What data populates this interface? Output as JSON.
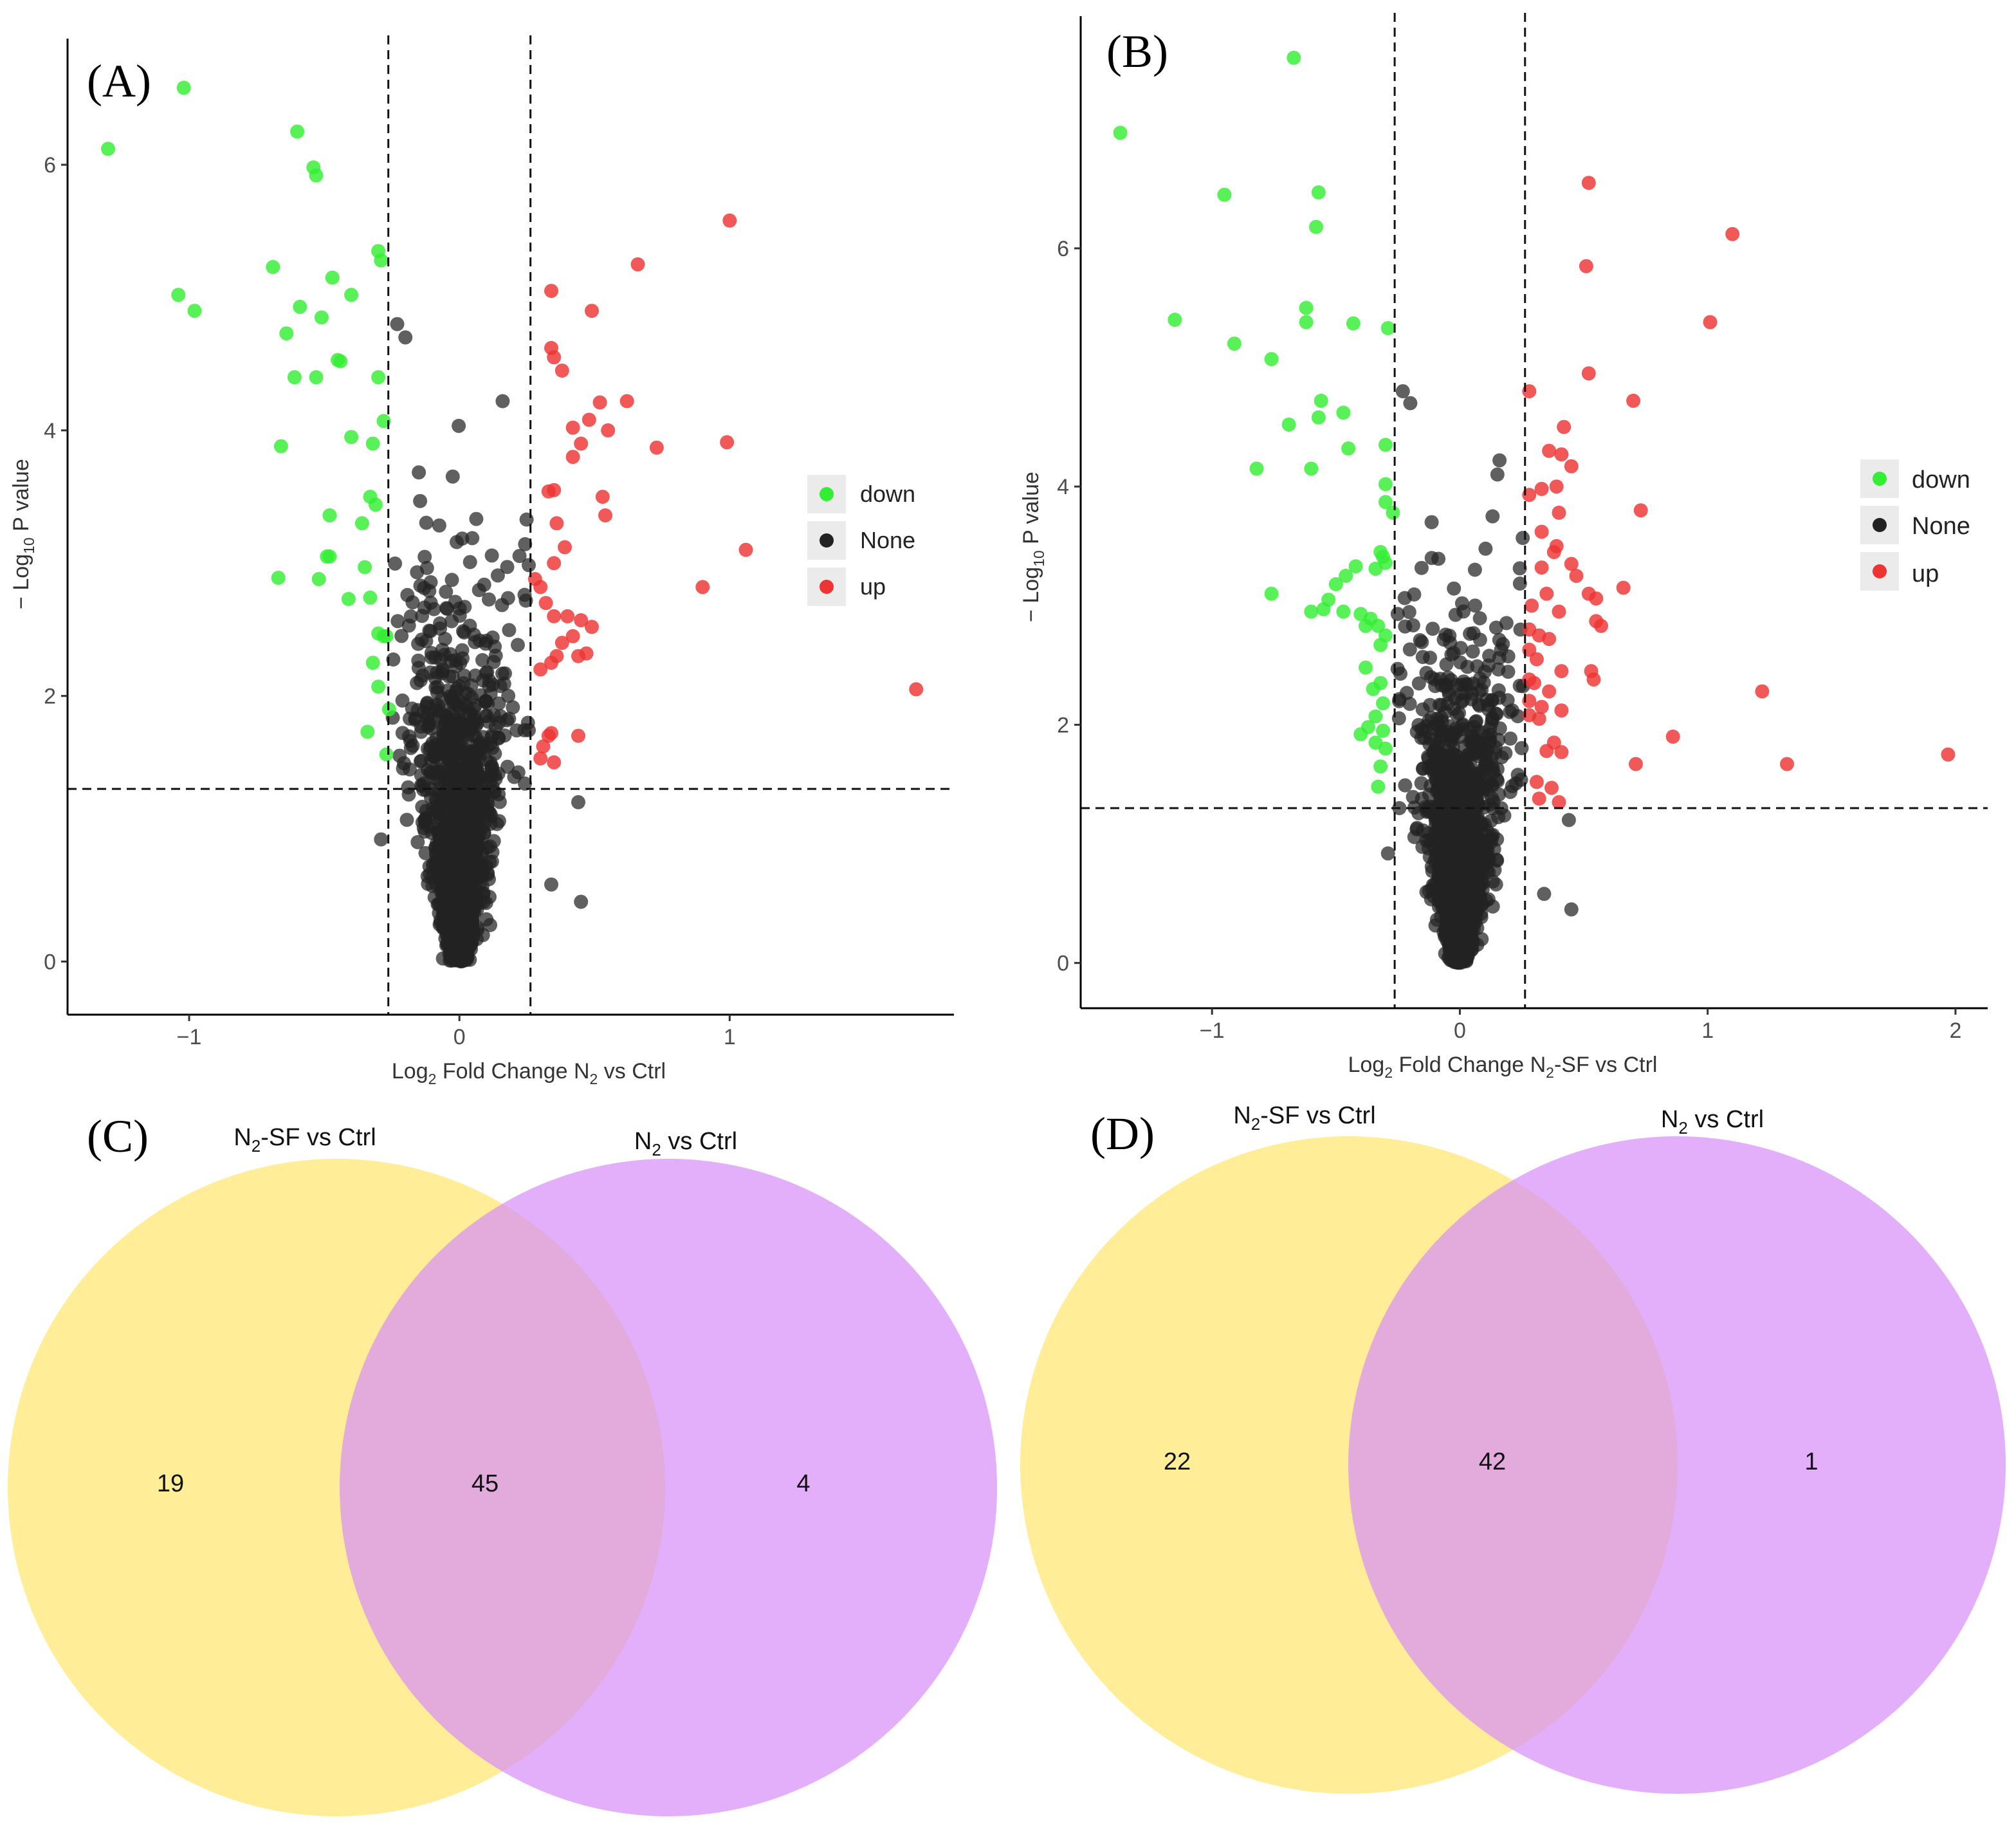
{
  "chart_data": [
    {
      "type": "scatter",
      "panel": "(A)",
      "xlabel": {
        "prefix": "Log",
        "sub": "2",
        "mid": " Fold Change N",
        "sub2": "2",
        "suffix": " vs Ctrl"
      },
      "ylabel": {
        "prefix": "− Log",
        "sub": "10",
        "suffix": " P value"
      },
      "xlim": [
        -1.45,
        1.83
      ],
      "ylim": [
        -0.4,
        6.95
      ],
      "xticks": [
        -1,
        0,
        1
      ],
      "xtick_labels": [
        "−1",
        "0",
        "1"
      ],
      "yticks": [
        0,
        2,
        4,
        6
      ],
      "ytick_labels": [
        "0",
        "2",
        "4",
        "6"
      ],
      "thresholds": {
        "log2fc": [
          -0.263,
          0.263
        ],
        "neg_log10_p": 1.3
      },
      "grid": false,
      "legend": {
        "position": "right",
        "entries": [
          {
            "label": "down",
            "color": "#33ee33"
          },
          {
            "label": "None",
            "color": "#222222"
          },
          {
            "label": "up",
            "color": "#ee3333"
          }
        ]
      },
      "series": [
        {
          "name": "down",
          "color": "#33ee33",
          "points": [
            [
              -1.3,
              6.12
            ],
            [
              -1.02,
              6.58
            ],
            [
              -1.04,
              5.02
            ],
            [
              -0.98,
              4.9
            ],
            [
              -0.6,
              6.25
            ],
            [
              -0.54,
              5.98
            ],
            [
              -0.53,
              5.92
            ],
            [
              -0.69,
              5.23
            ],
            [
              -0.47,
              5.15
            ],
            [
              -0.4,
              5.02
            ],
            [
              -0.59,
              4.93
            ],
            [
              -0.51,
              4.85
            ],
            [
              -0.64,
              4.73
            ],
            [
              -0.45,
              4.53
            ],
            [
              -0.44,
              4.52
            ],
            [
              -0.61,
              4.4
            ],
            [
              -0.53,
              4.4
            ],
            [
              -0.3,
              5.35
            ],
            [
              -0.29,
              5.28
            ],
            [
              -0.3,
              4.4
            ],
            [
              -0.4,
              3.95
            ],
            [
              -0.32,
              3.9
            ],
            [
              -0.28,
              4.07
            ],
            [
              -0.66,
              3.88
            ],
            [
              -0.48,
              3.36
            ],
            [
              -0.36,
              3.3
            ],
            [
              -0.33,
              3.5
            ],
            [
              -0.31,
              3.44
            ],
            [
              -0.49,
              3.05
            ],
            [
              -0.48,
              3.05
            ],
            [
              -0.67,
              2.89
            ],
            [
              -0.52,
              2.88
            ],
            [
              -0.35,
              2.97
            ],
            [
              -0.41,
              2.73
            ],
            [
              -0.33,
              2.74
            ],
            [
              -0.3,
              2.47
            ],
            [
              -0.28,
              2.45
            ],
            [
              -0.27,
              2.45
            ],
            [
              -0.32,
              2.25
            ],
            [
              -0.3,
              2.07
            ],
            [
              -0.34,
              1.73
            ],
            [
              -0.26,
              1.9
            ],
            [
              -0.27,
              1.56
            ]
          ]
        },
        {
          "name": "up",
          "color": "#ee3333",
          "points": [
            [
              1.0,
              5.58
            ],
            [
              0.66,
              5.25
            ],
            [
              0.34,
              5.05
            ],
            [
              0.49,
              4.9
            ],
            [
              0.34,
              4.62
            ],
            [
              0.35,
              4.55
            ],
            [
              0.38,
              4.45
            ],
            [
              0.62,
              4.22
            ],
            [
              0.52,
              4.21
            ],
            [
              0.48,
              4.08
            ],
            [
              0.42,
              4.02
            ],
            [
              0.55,
              4.0
            ],
            [
              0.99,
              3.91
            ],
            [
              0.73,
              3.87
            ],
            [
              0.45,
              3.9
            ],
            [
              0.42,
              3.8
            ],
            [
              0.35,
              3.55
            ],
            [
              0.33,
              3.54
            ],
            [
              0.53,
              3.5
            ],
            [
              0.54,
              3.36
            ],
            [
              0.36,
              3.3
            ],
            [
              0.39,
              3.12
            ],
            [
              0.35,
              3.0
            ],
            [
              1.06,
              3.1
            ],
            [
              0.9,
              2.82
            ],
            [
              0.28,
              2.88
            ],
            [
              0.3,
              2.82
            ],
            [
              0.32,
              2.7
            ],
            [
              0.35,
              2.6
            ],
            [
              0.4,
              2.6
            ],
            [
              0.45,
              2.57
            ],
            [
              0.49,
              2.52
            ],
            [
              0.42,
              2.45
            ],
            [
              0.38,
              2.4
            ],
            [
              0.47,
              2.32
            ],
            [
              0.44,
              2.3
            ],
            [
              0.36,
              2.3
            ],
            [
              0.34,
              2.25
            ],
            [
              0.3,
              2.2
            ],
            [
              1.69,
              2.05
            ],
            [
              0.34,
              1.72
            ],
            [
              0.33,
              1.7
            ],
            [
              0.44,
              1.7
            ],
            [
              0.31,
              1.62
            ],
            [
              0.3,
              1.53
            ],
            [
              0.35,
              1.5
            ]
          ]
        }
      ],
      "none_points_generated": {
        "count": 1500,
        "seed": 11
      }
    },
    {
      "type": "scatter",
      "panel": "(B)",
      "xlabel": {
        "prefix": "Log",
        "sub": "2",
        "mid": " Fold Change N",
        "sub2": "2",
        "suffix": "-SF vs Ctrl"
      },
      "ylabel": {
        "prefix": "− Log",
        "sub": "10",
        "suffix": " P value"
      },
      "xlim": [
        -1.53,
        2.13
      ],
      "ylim": [
        -0.38,
        7.95
      ],
      "xticks": [
        -1,
        0,
        1,
        2
      ],
      "xtick_labels": [
        "−1",
        "0",
        "1",
        "2"
      ],
      "yticks": [
        0,
        2,
        4,
        6
      ],
      "ytick_labels": [
        "0",
        "2",
        "4",
        "6"
      ],
      "thresholds": {
        "log2fc": [
          -0.263,
          0.263
        ],
        "neg_log10_p": 1.3
      },
      "grid": false,
      "legend": {
        "position": "right",
        "entries": [
          {
            "label": "down",
            "color": "#33ee33"
          },
          {
            "label": "None",
            "color": "#222222"
          },
          {
            "label": "up",
            "color": "#ee3333"
          }
        ]
      },
      "series": [
        {
          "name": "down",
          "color": "#33ee33",
          "points": [
            [
              -0.67,
              7.6
            ],
            [
              -1.37,
              6.97
            ],
            [
              -0.95,
              6.45
            ],
            [
              -0.57,
              6.47
            ],
            [
              -0.58,
              6.18
            ],
            [
              -1.15,
              5.4
            ],
            [
              -0.62,
              5.5
            ],
            [
              -0.62,
              5.38
            ],
            [
              -0.43,
              5.37
            ],
            [
              -0.29,
              5.33
            ],
            [
              -0.91,
              5.2
            ],
            [
              -0.76,
              5.07
            ],
            [
              -0.56,
              4.72
            ],
            [
              -0.47,
              4.62
            ],
            [
              -0.57,
              4.58
            ],
            [
              -0.69,
              4.52
            ],
            [
              -0.45,
              4.32
            ],
            [
              -0.3,
              4.35
            ],
            [
              -0.82,
              4.15
            ],
            [
              -0.6,
              4.15
            ],
            [
              -0.3,
              4.02
            ],
            [
              -0.3,
              3.87
            ],
            [
              -0.27,
              3.78
            ],
            [
              -0.32,
              3.45
            ],
            [
              -0.31,
              3.41
            ],
            [
              -0.3,
              3.36
            ],
            [
              -0.34,
              3.31
            ],
            [
              -0.42,
              3.33
            ],
            [
              -0.46,
              3.25
            ],
            [
              -0.5,
              3.18
            ],
            [
              -0.53,
              3.05
            ],
            [
              -0.55,
              2.97
            ],
            [
              -0.6,
              2.95
            ],
            [
              -0.47,
              2.95
            ],
            [
              -0.4,
              2.93
            ],
            [
              -0.36,
              2.89
            ],
            [
              -0.38,
              2.83
            ],
            [
              -0.33,
              2.83
            ],
            [
              -0.3,
              2.75
            ],
            [
              -0.32,
              2.67
            ],
            [
              -0.76,
              3.1
            ],
            [
              -0.38,
              2.48
            ],
            [
              -0.32,
              2.35
            ],
            [
              -0.35,
              2.3
            ],
            [
              -0.31,
              2.18
            ],
            [
              -0.34,
              2.07
            ],
            [
              -0.37,
              1.98
            ],
            [
              -0.4,
              1.92
            ],
            [
              -0.31,
              1.95
            ],
            [
              -0.34,
              1.85
            ],
            [
              -0.3,
              1.8
            ],
            [
              -0.32,
              1.65
            ],
            [
              -0.33,
              1.48
            ]
          ]
        },
        {
          "name": "up",
          "color": "#ee3333",
          "points": [
            [
              0.52,
              6.55
            ],
            [
              1.1,
              6.12
            ],
            [
              0.51,
              5.85
            ],
            [
              1.01,
              5.38
            ],
            [
              0.52,
              4.95
            ],
            [
              0.28,
              4.8
            ],
            [
              0.7,
              4.72
            ],
            [
              0.42,
              4.5
            ],
            [
              0.36,
              4.3
            ],
            [
              0.41,
              4.27
            ],
            [
              0.45,
              4.17
            ],
            [
              0.39,
              4.0
            ],
            [
              0.33,
              3.98
            ],
            [
              0.28,
              3.93
            ],
            [
              0.73,
              3.8
            ],
            [
              0.4,
              3.78
            ],
            [
              0.33,
              3.62
            ],
            [
              0.39,
              3.5
            ],
            [
              0.38,
              3.45
            ],
            [
              0.45,
              3.35
            ],
            [
              0.33,
              3.32
            ],
            [
              0.47,
              3.25
            ],
            [
              0.35,
              3.1
            ],
            [
              0.52,
              3.1
            ],
            [
              0.55,
              3.06
            ],
            [
              0.66,
              3.15
            ],
            [
              0.29,
              3.0
            ],
            [
              0.4,
              2.95
            ],
            [
              0.28,
              2.8
            ],
            [
              0.55,
              2.87
            ],
            [
              0.57,
              2.83
            ],
            [
              0.32,
              2.75
            ],
            [
              0.36,
              2.72
            ],
            [
              0.28,
              2.63
            ],
            [
              0.31,
              2.55
            ],
            [
              0.41,
              2.45
            ],
            [
              0.53,
              2.45
            ],
            [
              0.54,
              2.38
            ],
            [
              0.28,
              2.38
            ],
            [
              0.3,
              2.35
            ],
            [
              0.36,
              2.28
            ],
            [
              0.28,
              2.2
            ],
            [
              0.33,
              2.15
            ],
            [
              0.41,
              2.12
            ],
            [
              0.28,
              2.08
            ],
            [
              1.22,
              2.28
            ],
            [
              0.32,
              2.05
            ],
            [
              0.86,
              1.9
            ],
            [
              0.38,
              1.85
            ],
            [
              0.35,
              1.78
            ],
            [
              0.41,
              1.77
            ],
            [
              0.71,
              1.67
            ],
            [
              1.32,
              1.67
            ],
            [
              1.97,
              1.75
            ],
            [
              0.31,
              1.52
            ],
            [
              0.37,
              1.47
            ],
            [
              0.32,
              1.38
            ],
            [
              0.4,
              1.35
            ]
          ]
        }
      ],
      "none_points_generated": {
        "count": 1700,
        "seed": 29
      }
    },
    {
      "type": "venn",
      "panel": "(C)",
      "sets": [
        {
          "label_main": "N",
          "label_sub": "2",
          "label_rest": "-SF vs Ctrl",
          "color": "#ffe66b"
        },
        {
          "label_main": "N",
          "label_sub": "2",
          "label_rest": " vs Ctrl",
          "color": "#d78dfa"
        }
      ],
      "counts": {
        "left_only": "19",
        "overlap": "45",
        "right_only": "4"
      }
    },
    {
      "type": "venn",
      "panel": "(D)",
      "sets": [
        {
          "label_main": "N",
          "label_sub": "2",
          "label_rest": "-SF vs Ctrl",
          "color": "#ffe66b"
        },
        {
          "label_main": "N",
          "label_sub": "2",
          "label_rest": " vs Ctrl",
          "color": "#d78dfa"
        }
      ],
      "counts": {
        "left_only": "22",
        "overlap": "42",
        "right_only": "1"
      }
    }
  ]
}
